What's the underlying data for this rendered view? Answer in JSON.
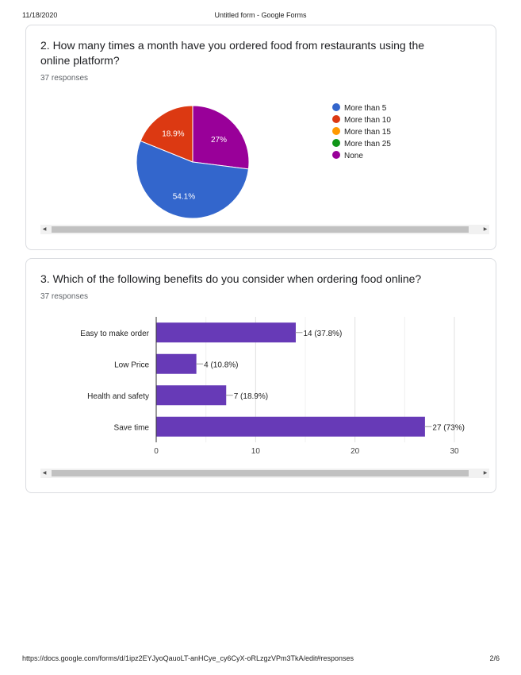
{
  "header": {
    "date": "11/18/2020",
    "title": "Untitled form - Google Forms"
  },
  "footer": {
    "url": "https://docs.google.com/forms/d/1ipz2EYJyoQauoLT-anHCye_cy6CyX-oRLzgzVPm3TkA/edit#responses",
    "page": "2/6"
  },
  "q2": {
    "title": "2. How many times a month have you ordered food from restaurants using the online platform?",
    "responses": "37 responses",
    "legend": [
      {
        "label": "More than 5",
        "color": "#3366cc"
      },
      {
        "label": "More than 10",
        "color": "#dc3912"
      },
      {
        "label": "More than 15",
        "color": "#ff9900"
      },
      {
        "label": "More than 25",
        "color": "#109618"
      },
      {
        "label": "None",
        "color": "#990099"
      }
    ]
  },
  "q3": {
    "title": "3. Which of the following benefits do you consider when ordering food online?",
    "responses": "37 responses"
  },
  "icons": {
    "scroll_left": "arrow-left-icon",
    "scroll_right": "arrow-right-icon"
  },
  "chart_data": [
    {
      "type": "pie",
      "categories": [
        "More than 5",
        "More than 10",
        "More than 15",
        "More than 25",
        "None"
      ],
      "values": [
        54.1,
        18.9,
        0,
        0,
        27
      ],
      "data_labels": [
        "54.1%",
        "18.9%",
        "",
        "",
        "27%"
      ],
      "colors": [
        "#3366cc",
        "#dc3912",
        "#ff9900",
        "#109618",
        "#990099"
      ],
      "legend_position": "right"
    },
    {
      "type": "bar",
      "orientation": "horizontal",
      "categories": [
        "Easy to make order",
        "Low Price",
        "Health and safety",
        "Save time"
      ],
      "values": [
        14,
        4,
        7,
        27
      ],
      "data_labels": [
        "14 (37.8%)",
        "4 (10.8%)",
        "7 (18.9%)",
        "27 (73%)"
      ],
      "xlim": [
        0,
        30
      ],
      "xticks": [
        0,
        10,
        20,
        30
      ],
      "bar_color": "#673ab7",
      "grid": true
    }
  ]
}
